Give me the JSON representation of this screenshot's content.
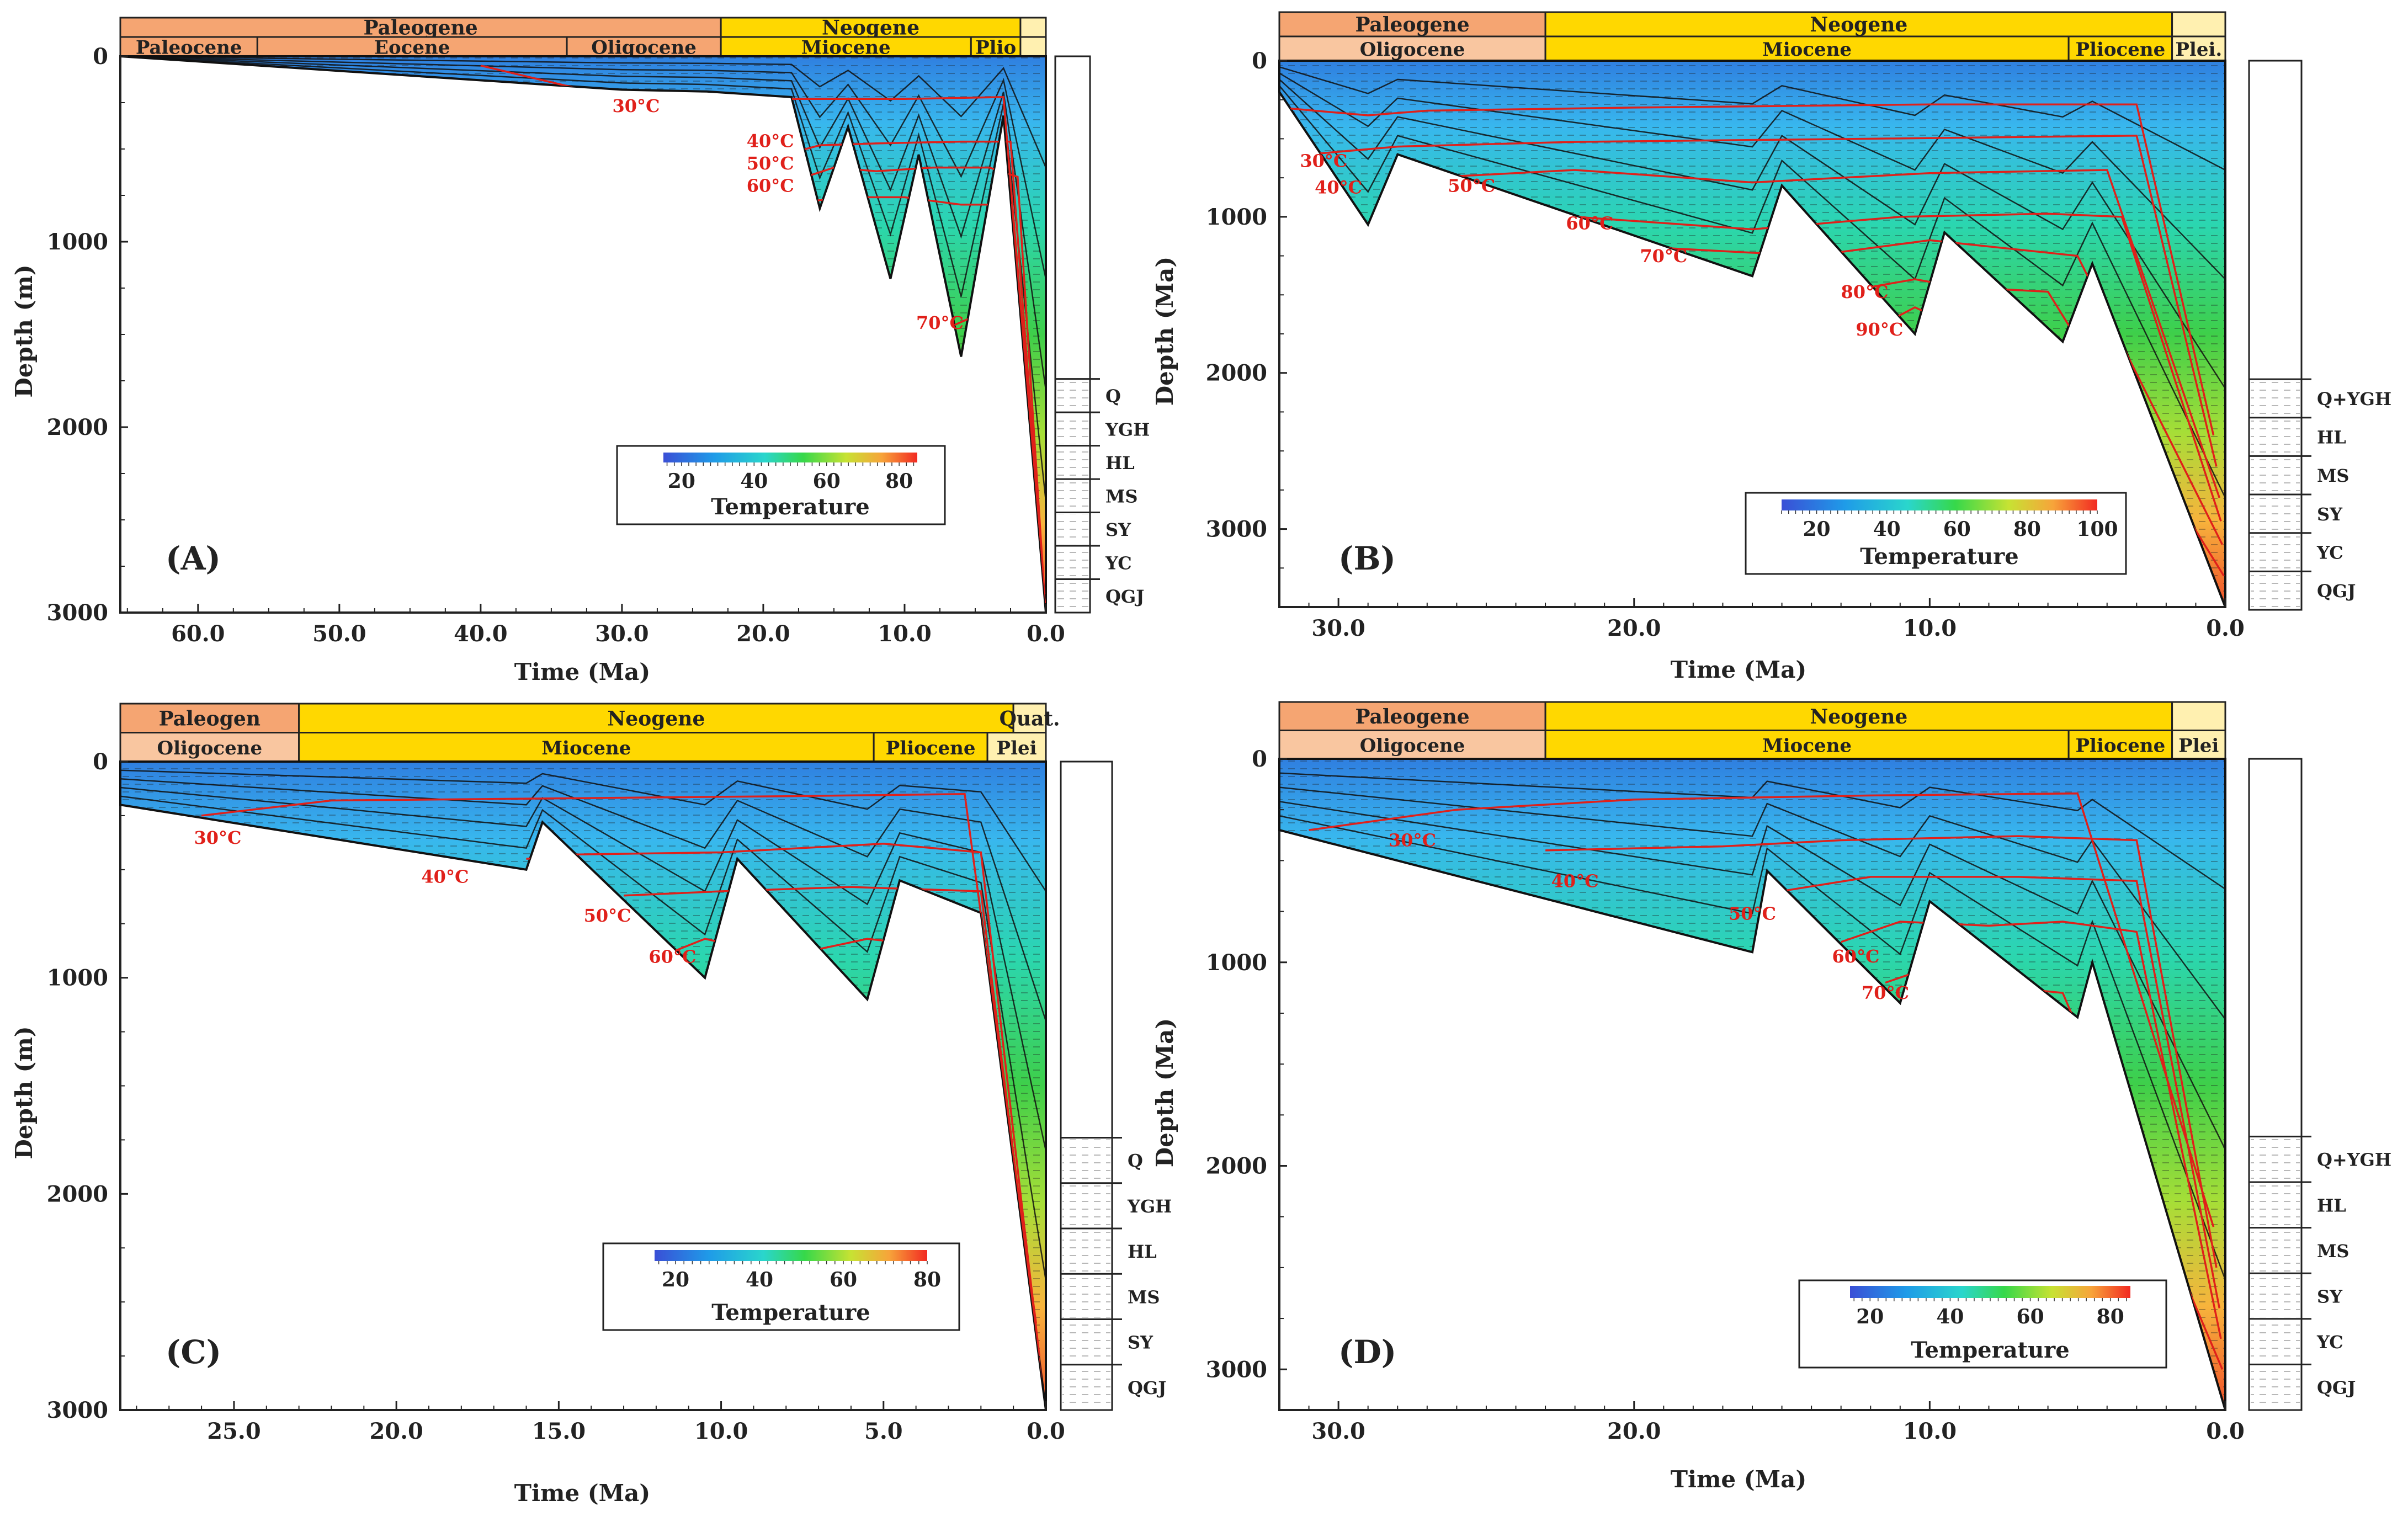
{
  "chart_data": [
    {
      "type": "heatmap",
      "panel_label": "(A)",
      "xlabel": "Time (Ma)",
      "ylabel": "Depth (m)",
      "xlim": [
        65.5,
        0
      ],
      "ylim": [
        0,
        3000
      ],
      "x_ticks": [
        "60.0",
        "50.0",
        "40.0",
        "30.0",
        "20.0",
        "10.0",
        "0.0"
      ],
      "y_ticks": [
        "0",
        "1000",
        "2000",
        "3000"
      ],
      "eras": [
        {
          "label": "Paleogene",
          "start": 65.5,
          "end": 23.0
        },
        {
          "label": "Neogene",
          "start": 23.0,
          "end": 1.8
        },
        {
          "label": "",
          "start": 1.8,
          "end": 0
        }
      ],
      "epochs": [
        {
          "label": "Paleocene",
          "start": 65.5,
          "end": 55.8
        },
        {
          "label": "Eocene",
          "start": 55.8,
          "end": 33.9
        },
        {
          "label": "Oligocene",
          "start": 33.9,
          "end": 23.0
        },
        {
          "label": "Miocene",
          "start": 23.0,
          "end": 5.3
        },
        {
          "label": "Plio",
          "start": 5.3,
          "end": 1.8
        },
        {
          "label": "",
          "start": 1.8,
          "end": 0
        }
      ],
      "colorbar": {
        "title": "Temperature",
        "ticks": [
          "20",
          "40",
          "60",
          "80"
        ],
        "min": 15,
        "max": 85
      },
      "burial_outline": [
        [
          65.5,
          0
        ],
        [
          30,
          180
        ],
        [
          24,
          190
        ],
        [
          18,
          220
        ],
        [
          16,
          820
        ],
        [
          14,
          380
        ],
        [
          11,
          1200
        ],
        [
          9,
          530
        ],
        [
          6,
          1620
        ],
        [
          3,
          320
        ],
        [
          0,
          3000
        ],
        [
          0,
          0
        ]
      ],
      "isotherms": [
        {
          "label": "30°C",
          "label_at": [
            29,
            300
          ],
          "points": [
            [
              40,
              50
            ],
            [
              30,
              230
            ],
            [
              24,
              240
            ],
            [
              18,
              230
            ],
            [
              10,
              230
            ],
            [
              3,
              220
            ],
            [
              0.3,
              2700
            ]
          ]
        },
        {
          "label": "40°C",
          "label_at": [
            19.5,
            490
          ],
          "points": [
            [
              18,
              520
            ],
            [
              16,
              480
            ],
            [
              12,
              470
            ],
            [
              6,
              460
            ],
            [
              2.5,
              460
            ],
            [
              0.2,
              2800
            ]
          ]
        },
        {
          "label": "50°C",
          "label_at": [
            19.5,
            610
          ],
          "points": [
            [
              17,
              650
            ],
            [
              15,
              600
            ],
            [
              12,
              620
            ],
            [
              8,
              600
            ],
            [
              4,
              600
            ],
            [
              2,
              650
            ],
            [
              0.15,
              2850
            ]
          ]
        },
        {
          "label": "60°C",
          "label_at": [
            19.5,
            730
          ],
          "points": [
            [
              16.5,
              780
            ],
            [
              14,
              760
            ],
            [
              10,
              760
            ],
            [
              6,
              800
            ],
            [
              2.5,
              800
            ],
            [
              0.1,
              2900
            ]
          ]
        },
        {
          "label": "70°C",
          "label_at": [
            7.5,
            1470
          ],
          "points": [
            [
              6.5,
              1450
            ],
            [
              5,
              1400
            ],
            [
              3,
              1420
            ],
            [
              0.05,
              2950
            ]
          ]
        }
      ],
      "lithology": [
        "Q",
        "YGH",
        "HL",
        "MS",
        "SY",
        "YC",
        "QGJ"
      ]
    },
    {
      "type": "heatmap",
      "panel_label": "(B)",
      "xlabel": "Time (Ma)",
      "ylabel": "Depth (Ma)",
      "xlim": [
        32,
        0
      ],
      "ylim": [
        0,
        3500
      ],
      "x_ticks": [
        "30.0",
        "20.0",
        "10.0",
        "0.0"
      ],
      "y_ticks": [
        "0",
        "1000",
        "2000",
        "3000"
      ],
      "eras": [
        {
          "label": "Paleogene",
          "start": 32,
          "end": 23.0
        },
        {
          "label": "Neogene",
          "start": 23.0,
          "end": 1.8
        },
        {
          "label": "",
          "start": 1.8,
          "end": 0
        }
      ],
      "epochs": [
        {
          "label": "Oligocene",
          "start": 32,
          "end": 23.0
        },
        {
          "label": "Miocene",
          "start": 23.0,
          "end": 5.3
        },
        {
          "label": "Pliocene",
          "start": 5.3,
          "end": 1.8
        },
        {
          "label": "Plei.",
          "start": 1.8,
          "end": 0
        }
      ],
      "colorbar": {
        "title": "Temperature",
        "ticks": [
          "20",
          "40",
          "60",
          "80",
          "100"
        ],
        "min": 10,
        "max": 100
      },
      "burial_outline": [
        [
          32,
          0
        ],
        [
          32,
          200
        ],
        [
          29,
          1050
        ],
        [
          28,
          600
        ],
        [
          16,
          1380
        ],
        [
          15,
          800
        ],
        [
          10.5,
          1750
        ],
        [
          9.5,
          1100
        ],
        [
          5.5,
          1800
        ],
        [
          4.5,
          1300
        ],
        [
          0,
          3500
        ],
        [
          0,
          0
        ]
      ],
      "isotherms": [
        {
          "label": "30°C",
          "label_at": [
            30.5,
            680
          ],
          "points": [
            [
              32,
              300
            ],
            [
              29,
              350
            ],
            [
              27,
              320
            ],
            [
              20,
              300
            ],
            [
              10,
              280
            ],
            [
              3,
              280
            ],
            [
              0.4,
              2400
            ]
          ]
        },
        {
          "label": "40°C",
          "label_at": [
            30,
            850
          ],
          "points": [
            [
              31,
              600
            ],
            [
              28,
              550
            ],
            [
              22,
              520
            ],
            [
              12,
              500
            ],
            [
              3,
              480
            ],
            [
              0.3,
              2600
            ]
          ]
        },
        {
          "label": "50°C",
          "label_at": [
            25.5,
            840
          ],
          "points": [
            [
              27,
              750
            ],
            [
              22,
              700
            ],
            [
              16,
              780
            ],
            [
              10,
              720
            ],
            [
              4,
              700
            ],
            [
              0.2,
              2800
            ]
          ]
        },
        {
          "label": "60°C",
          "label_at": [
            21.5,
            1080
          ],
          "points": [
            [
              22,
              1000
            ],
            [
              16,
              1080
            ],
            [
              11,
              1000
            ],
            [
              6,
              980
            ],
            [
              3.5,
              1000
            ],
            [
              0.15,
              2950
            ]
          ]
        },
        {
          "label": "70°C",
          "label_at": [
            19,
            1290
          ],
          "points": [
            [
              19,
              1200
            ],
            [
              14,
              1250
            ],
            [
              10,
              1150
            ],
            [
              5,
              1250
            ],
            [
              0.1,
              3100
            ]
          ]
        },
        {
          "label": "80°C",
          "label_at": [
            12.2,
            1520
          ],
          "points": [
            [
              12,
              1450
            ],
            [
              10.5,
              1400
            ],
            [
              9,
              1450
            ],
            [
              6,
              1480
            ],
            [
              0.05,
              3300
            ]
          ]
        },
        {
          "label": "90°C",
          "label_at": [
            11.7,
            1760
          ],
          "points": [
            [
              11.2,
              1650
            ],
            [
              10.5,
              1580
            ],
            [
              9.8,
              1640
            ]
          ]
        }
      ],
      "lithology": [
        "Q+YGH",
        "HL",
        "MS",
        "SY",
        "YC",
        "QGJ"
      ]
    },
    {
      "type": "heatmap",
      "panel_label": "(C)",
      "xlabel": "Time (Ma)",
      "ylabel": "Depth (m)",
      "xlim": [
        28.5,
        0
      ],
      "ylim": [
        0,
        3000
      ],
      "x_ticks": [
        "25.0",
        "20.0",
        "15.0",
        "10.0",
        "5.0",
        "0.0"
      ],
      "y_ticks": [
        "0",
        "1000",
        "2000",
        "3000"
      ],
      "eras": [
        {
          "label": "Paleogen",
          "start": 28.5,
          "end": 23.0
        },
        {
          "label": "Neogene",
          "start": 23.0,
          "end": 1.0
        },
        {
          "label": "Quat.",
          "start": 1.0,
          "end": 0
        }
      ],
      "epochs": [
        {
          "label": "Oligocene",
          "start": 28.5,
          "end": 23.0
        },
        {
          "label": "Miocene",
          "start": 23.0,
          "end": 5.3
        },
        {
          "label": "Pliocene",
          "start": 5.3,
          "end": 1.8
        },
        {
          "label": "Plei",
          "start": 1.8,
          "end": 0
        }
      ],
      "colorbar": {
        "title": "Temperature",
        "ticks": [
          "20",
          "40",
          "60",
          "80"
        ],
        "min": 15,
        "max": 80
      },
      "burial_outline": [
        [
          28.5,
          0
        ],
        [
          28.5,
          200
        ],
        [
          16,
          500
        ],
        [
          15.5,
          280
        ],
        [
          10.5,
          1000
        ],
        [
          9.5,
          450
        ],
        [
          5.5,
          1100
        ],
        [
          4.5,
          550
        ],
        [
          2,
          700
        ],
        [
          0,
          3000
        ],
        [
          0,
          0
        ]
      ],
      "isotherms": [
        {
          "label": "30°C",
          "label_at": [
            25.5,
            380
          ],
          "points": [
            [
              26,
              250
            ],
            [
              22,
              180
            ],
            [
              15,
              170
            ],
            [
              8,
              160
            ],
            [
              2.5,
              150
            ],
            [
              0.3,
              2600
            ]
          ]
        },
        {
          "label": "40°C",
          "label_at": [
            18.5,
            560
          ],
          "points": [
            [
              16,
              450
            ],
            [
              14.5,
              430
            ],
            [
              10,
              420
            ],
            [
              5,
              380
            ],
            [
              2,
              420
            ],
            [
              0.2,
              2750
            ]
          ]
        },
        {
          "label": "50°C",
          "label_at": [
            13.5,
            740
          ],
          "points": [
            [
              13,
              620
            ],
            [
              10,
              600
            ],
            [
              6,
              580
            ],
            [
              2,
              600
            ],
            [
              0.15,
              2850
            ]
          ]
        },
        {
          "label": "60°C",
          "label_at": [
            11.5,
            930
          ],
          "points": [
            [
              11.5,
              880
            ],
            [
              10.5,
              820
            ],
            [
              8,
              900
            ],
            [
              5.5,
              820
            ],
            [
              3,
              860
            ],
            [
              0.1,
              2950
            ]
          ]
        }
      ],
      "lithology": [
        "Q",
        "YGH",
        "HL",
        "MS",
        "SY",
        "QGJ"
      ]
    },
    {
      "type": "heatmap",
      "panel_label": "(D)",
      "xlabel": "Time (Ma)",
      "ylabel": "Depth (Ma)",
      "xlim": [
        32,
        0
      ],
      "ylim": [
        0,
        3200
      ],
      "x_ticks": [
        "30.0",
        "20.0",
        "10.0",
        "0.0"
      ],
      "y_ticks": [
        "0",
        "1000",
        "2000",
        "3000"
      ],
      "eras": [
        {
          "label": "Paleogene",
          "start": 32,
          "end": 23.0
        },
        {
          "label": "Neogene",
          "start": 23.0,
          "end": 1.8
        },
        {
          "label": "",
          "start": 1.8,
          "end": 0
        }
      ],
      "epochs": [
        {
          "label": "Oligocene",
          "start": 32,
          "end": 23.0
        },
        {
          "label": "Miocene",
          "start": 23.0,
          "end": 5.3
        },
        {
          "label": "Pliocene",
          "start": 5.3,
          "end": 1.8
        },
        {
          "label": "Plei",
          "start": 1.8,
          "end": 0
        }
      ],
      "colorbar": {
        "title": "Temperature",
        "ticks": [
          "20",
          "40",
          "60",
          "80"
        ],
        "min": 15,
        "max": 85
      },
      "burial_outline": [
        [
          32,
          0
        ],
        [
          32,
          350
        ],
        [
          16,
          950
        ],
        [
          15.5,
          550
        ],
        [
          11,
          1200
        ],
        [
          10,
          700
        ],
        [
          5,
          1270
        ],
        [
          4.5,
          1000
        ],
        [
          0,
          3200
        ],
        [
          0,
          0
        ]
      ],
      "isotherms": [
        {
          "label": "30°C",
          "label_at": [
            27.5,
            430
          ],
          "points": [
            [
              31,
              350
            ],
            [
              26,
              250
            ],
            [
              20,
              200
            ],
            [
              12,
              180
            ],
            [
              5,
              170
            ],
            [
              0.4,
              2300
            ]
          ]
        },
        {
          "label": "40°C",
          "label_at": [
            22,
            630
          ],
          "points": [
            [
              23,
              450
            ],
            [
              17,
              430
            ],
            [
              13,
              400
            ],
            [
              7,
              380
            ],
            [
              3,
              400
            ],
            [
              0.3,
              2500
            ]
          ]
        },
        {
          "label": "50°C",
          "label_at": [
            16,
            790
          ],
          "points": [
            [
              15,
              650
            ],
            [
              12,
              580
            ],
            [
              7,
              580
            ],
            [
              3,
              600
            ],
            [
              0.2,
              2700
            ]
          ]
        },
        {
          "label": "60°C",
          "label_at": [
            12.5,
            1000
          ],
          "points": [
            [
              13,
              900
            ],
            [
              11,
              800
            ],
            [
              8,
              820
            ],
            [
              5.5,
              800
            ],
            [
              3,
              850
            ],
            [
              0.15,
              2850
            ]
          ]
        },
        {
          "label": "70°C",
          "label_at": [
            11.5,
            1180
          ],
          "points": [
            [
              11.5,
              1100
            ],
            [
              10.5,
              1050
            ],
            [
              9,
              1100
            ],
            [
              5.5,
              1150
            ],
            [
              0.1,
              3000
            ]
          ]
        }
      ],
      "lithology": [
        "Q+YGH",
        "HL",
        "MS",
        "SY",
        "YC",
        "QGJ"
      ]
    }
  ],
  "colors": {
    "paleogene": "#f5a572",
    "oligocene_light": "#f9c6a0",
    "neogene": "#ffd800",
    "pleistocene": "#fff0b0",
    "isotherm": "#e0201a",
    "frame": "#222222"
  }
}
